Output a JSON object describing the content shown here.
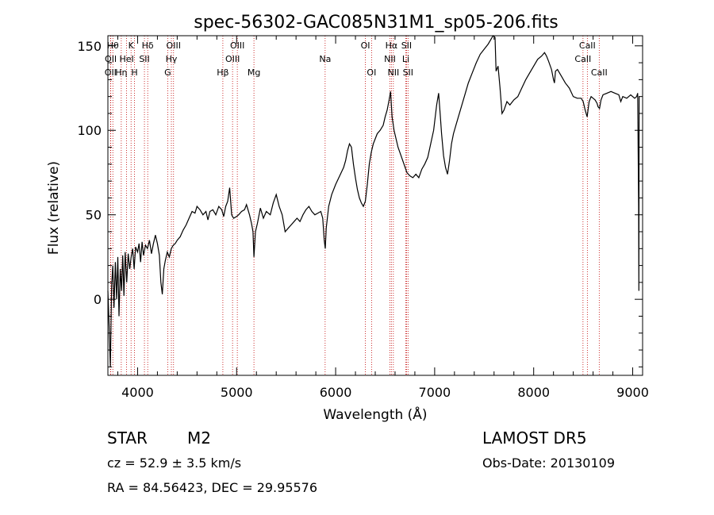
{
  "chart_data": {
    "type": "line",
    "title": "spec-56302-GAC085N31M1_sp05-206.fits",
    "xlabel": "Wavelength (Å)",
    "ylabel": "Flux (relative)",
    "xlim": [
      3700,
      9100
    ],
    "ylim": [
      -45,
      156
    ],
    "x_ticks": [
      4000,
      5000,
      6000,
      7000,
      8000,
      9000
    ],
    "y_ticks": [
      0,
      50,
      100,
      150
    ],
    "grid": false,
    "series": [
      {
        "points": [
          [
            3700,
            5
          ],
          [
            3712,
            -15
          ],
          [
            3725,
            -40
          ],
          [
            3738,
            8
          ],
          [
            3750,
            20
          ],
          [
            3762,
            -5
          ],
          [
            3775,
            22
          ],
          [
            3788,
            0
          ],
          [
            3800,
            25
          ],
          [
            3812,
            -10
          ],
          [
            3825,
            18
          ],
          [
            3838,
            5
          ],
          [
            3850,
            26
          ],
          [
            3862,
            2
          ],
          [
            3875,
            28
          ],
          [
            3890,
            10
          ],
          [
            3905,
            27
          ],
          [
            3920,
            18
          ],
          [
            3935,
            25
          ],
          [
            3950,
            30
          ],
          [
            3965,
            18
          ],
          [
            3980,
            31
          ],
          [
            4000,
            28
          ],
          [
            4015,
            33
          ],
          [
            4030,
            22
          ],
          [
            4045,
            34
          ],
          [
            4060,
            26
          ],
          [
            4080,
            32
          ],
          [
            4100,
            30
          ],
          [
            4120,
            35
          ],
          [
            4140,
            27
          ],
          [
            4160,
            33
          ],
          [
            4180,
            38
          ],
          [
            4200,
            33
          ],
          [
            4220,
            26
          ],
          [
            4235,
            10
          ],
          [
            4250,
            3
          ],
          [
            4265,
            18
          ],
          [
            4280,
            23
          ],
          [
            4300,
            28
          ],
          [
            4320,
            25
          ],
          [
            4340,
            30
          ],
          [
            4360,
            32
          ],
          [
            4380,
            33
          ],
          [
            4400,
            35
          ],
          [
            4430,
            37
          ],
          [
            4460,
            41
          ],
          [
            4490,
            44
          ],
          [
            4520,
            48
          ],
          [
            4550,
            52
          ],
          [
            4580,
            51
          ],
          [
            4600,
            55
          ],
          [
            4630,
            53
          ],
          [
            4660,
            50
          ],
          [
            4690,
            52
          ],
          [
            4710,
            47
          ],
          [
            4730,
            52
          ],
          [
            4760,
            53
          ],
          [
            4790,
            50
          ],
          [
            4820,
            55
          ],
          [
            4850,
            53
          ],
          [
            4870,
            49
          ],
          [
            4890,
            55
          ],
          [
            4910,
            58
          ],
          [
            4930,
            66
          ],
          [
            4950,
            50
          ],
          [
            4970,
            48
          ],
          [
            5000,
            49
          ],
          [
            5020,
            50
          ],
          [
            5050,
            52
          ],
          [
            5080,
            53
          ],
          [
            5100,
            56
          ],
          [
            5130,
            50
          ],
          [
            5150,
            45
          ],
          [
            5165,
            40
          ],
          [
            5175,
            25
          ],
          [
            5190,
            40
          ],
          [
            5210,
            45
          ],
          [
            5240,
            54
          ],
          [
            5270,
            48
          ],
          [
            5300,
            52
          ],
          [
            5340,
            50
          ],
          [
            5370,
            57
          ],
          [
            5400,
            62
          ],
          [
            5430,
            55
          ],
          [
            5460,
            50
          ],
          [
            5490,
            40
          ],
          [
            5520,
            42
          ],
          [
            5550,
            44
          ],
          [
            5580,
            46
          ],
          [
            5610,
            48
          ],
          [
            5640,
            46
          ],
          [
            5670,
            50
          ],
          [
            5700,
            53
          ],
          [
            5730,
            55
          ],
          [
            5760,
            52
          ],
          [
            5790,
            50
          ],
          [
            5820,
            51
          ],
          [
            5850,
            52
          ],
          [
            5870,
            48
          ],
          [
            5885,
            35
          ],
          [
            5895,
            30
          ],
          [
            5905,
            42
          ],
          [
            5930,
            55
          ],
          [
            5960,
            62
          ],
          [
            6000,
            68
          ],
          [
            6040,
            73
          ],
          [
            6080,
            78
          ],
          [
            6100,
            82
          ],
          [
            6120,
            88
          ],
          [
            6140,
            92
          ],
          [
            6160,
            90
          ],
          [
            6180,
            80
          ],
          [
            6200,
            72
          ],
          [
            6220,
            65
          ],
          [
            6240,
            60
          ],
          [
            6260,
            57
          ],
          [
            6280,
            55
          ],
          [
            6300,
            58
          ],
          [
            6320,
            68
          ],
          [
            6340,
            80
          ],
          [
            6360,
            87
          ],
          [
            6380,
            92
          ],
          [
            6400,
            95
          ],
          [
            6420,
            98
          ],
          [
            6450,
            100
          ],
          [
            6480,
            103
          ],
          [
            6500,
            108
          ],
          [
            6520,
            112
          ],
          [
            6540,
            118
          ],
          [
            6555,
            123
          ],
          [
            6570,
            108
          ],
          [
            6590,
            100
          ],
          [
            6610,
            95
          ],
          [
            6630,
            90
          ],
          [
            6660,
            85
          ],
          [
            6690,
            80
          ],
          [
            6720,
            75
          ],
          [
            6750,
            73
          ],
          [
            6780,
            72
          ],
          [
            6810,
            74
          ],
          [
            6840,
            72
          ],
          [
            6870,
            77
          ],
          [
            6900,
            80
          ],
          [
            6930,
            84
          ],
          [
            6960,
            92
          ],
          [
            6990,
            100
          ],
          [
            7020,
            115
          ],
          [
            7040,
            122
          ],
          [
            7055,
            110
          ],
          [
            7070,
            98
          ],
          [
            7090,
            85
          ],
          [
            7110,
            78
          ],
          [
            7130,
            74
          ],
          [
            7150,
            82
          ],
          [
            7170,
            92
          ],
          [
            7190,
            98
          ],
          [
            7220,
            104
          ],
          [
            7260,
            112
          ],
          [
            7300,
            120
          ],
          [
            7340,
            128
          ],
          [
            7380,
            134
          ],
          [
            7420,
            140
          ],
          [
            7460,
            145
          ],
          [
            7500,
            148
          ],
          [
            7540,
            151
          ],
          [
            7570,
            154
          ],
          [
            7590,
            156
          ],
          [
            7610,
            155
          ],
          [
            7620,
            135
          ],
          [
            7640,
            138
          ],
          [
            7660,
            125
          ],
          [
            7680,
            110
          ],
          [
            7700,
            112
          ],
          [
            7730,
            117
          ],
          [
            7760,
            115
          ],
          [
            7800,
            118
          ],
          [
            7840,
            120
          ],
          [
            7880,
            125
          ],
          [
            7920,
            130
          ],
          [
            7960,
            134
          ],
          [
            8000,
            138
          ],
          [
            8040,
            142
          ],
          [
            8080,
            144
          ],
          [
            8110,
            146
          ],
          [
            8130,
            144
          ],
          [
            8150,
            141
          ],
          [
            8180,
            136
          ],
          [
            8200,
            130
          ],
          [
            8210,
            128
          ],
          [
            8220,
            135
          ],
          [
            8240,
            136
          ],
          [
            8280,
            132
          ],
          [
            8320,
            128
          ],
          [
            8360,
            125
          ],
          [
            8400,
            120
          ],
          [
            8440,
            119
          ],
          [
            8480,
            119
          ],
          [
            8500,
            117
          ],
          [
            8520,
            112
          ],
          [
            8540,
            108
          ],
          [
            8560,
            117
          ],
          [
            8580,
            120
          ],
          [
            8620,
            118
          ],
          [
            8640,
            116
          ],
          [
            8650,
            114
          ],
          [
            8665,
            113
          ],
          [
            8680,
            118
          ],
          [
            8700,
            121
          ],
          [
            8740,
            122
          ],
          [
            8780,
            123
          ],
          [
            8820,
            122
          ],
          [
            8860,
            121
          ],
          [
            8880,
            117
          ],
          [
            8900,
            120
          ],
          [
            8940,
            119
          ],
          [
            8980,
            121
          ],
          [
            9020,
            119
          ],
          [
            9040,
            120
          ],
          [
            9050,
            122
          ],
          [
            9060,
            55
          ],
          [
            9062,
            5
          ],
          [
            9065,
            120
          ]
        ]
      }
    ],
    "line_markers": [
      {
        "label": "OII",
        "x": 3727,
        "row": 2
      },
      {
        "label": "OII",
        "x": 3729,
        "row": 1
      },
      {
        "label": "Hθ",
        "x": 3750,
        "row": 0
      },
      {
        "label": "Hη",
        "x": 3835,
        "row": 2
      },
      {
        "label": "HeI",
        "x": 3889,
        "row": 1
      },
      {
        "label": "K",
        "x": 3934,
        "row": 0
      },
      {
        "label": "H",
        "x": 3969,
        "row": 2
      },
      {
        "label": "SII",
        "x": 4069,
        "row": 1
      },
      {
        "label": "Hδ",
        "x": 4102,
        "row": 0
      },
      {
        "label": "G",
        "x": 4304,
        "row": 2
      },
      {
        "label": "Hγ",
        "x": 4341,
        "row": 1
      },
      {
        "label": "OIII",
        "x": 4363,
        "row": 0
      },
      {
        "label": "Hβ",
        "x": 4861,
        "row": 2
      },
      {
        "label": "OIII",
        "x": 4959,
        "row": 1
      },
      {
        "label": "OIII",
        "x": 5007,
        "row": 0
      },
      {
        "label": "Mg",
        "x": 5175,
        "row": 2
      },
      {
        "label": "Na",
        "x": 5894,
        "row": 1
      },
      {
        "label": "OI",
        "x": 6300,
        "row": 0
      },
      {
        "label": "OI",
        "x": 6363,
        "row": 2
      },
      {
        "label": "NII",
        "x": 6548,
        "row": 1
      },
      {
        "label": "Hα",
        "x": 6563,
        "row": 0
      },
      {
        "label": "NII",
        "x": 6583,
        "row": 2
      },
      {
        "label": "Li",
        "x": 6708,
        "row": 1
      },
      {
        "label": "SII",
        "x": 6716,
        "row": 0
      },
      {
        "label": "SII",
        "x": 6731,
        "row": 2
      },
      {
        "label": "CaII",
        "x": 8498,
        "row": 1
      },
      {
        "label": "CaII",
        "x": 8542,
        "row": 0
      },
      {
        "label": "CaII",
        "x": 8662,
        "row": 2
      }
    ],
    "colors": {
      "spectrum": "#000000",
      "markers": "#c00000"
    }
  },
  "info": {
    "class": "STAR",
    "subclass": "M2",
    "survey": "LAMOST DR5",
    "cz": "cz = 52.9 ± 3.5 km/s",
    "obs_date": "Obs-Date: 20130109",
    "coords": "RA =  84.56423, DEC =  29.95576"
  }
}
